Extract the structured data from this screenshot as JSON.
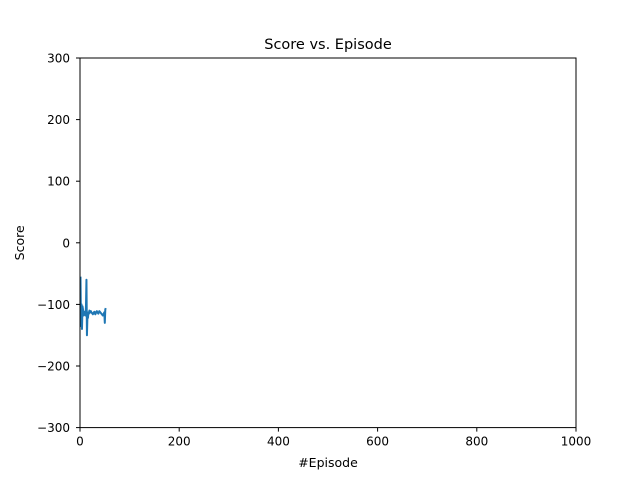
{
  "chart_data": {
    "type": "line",
    "title": "Score vs. Episode",
    "xlabel": "#Episode",
    "ylabel": "Score",
    "xlim": [
      0,
      1000
    ],
    "ylim": [
      -300,
      300
    ],
    "xticks": [
      0,
      200,
      400,
      600,
      800,
      1000
    ],
    "yticks": [
      -300,
      -200,
      -100,
      0,
      100,
      200,
      300
    ],
    "xtick_labels": [
      "0",
      "200",
      "400",
      "600",
      "800",
      "1000"
    ],
    "ytick_labels": [
      "−300",
      "−200",
      "−100",
      "0",
      "100",
      "200",
      "300"
    ],
    "grid": false,
    "series": [
      {
        "color": "#1f77b4",
        "x": [
          1,
          2,
          3,
          4,
          5,
          6,
          7,
          8,
          9,
          10,
          11,
          12,
          13,
          14,
          15,
          16,
          17,
          18,
          19,
          20,
          21,
          22,
          23,
          24,
          25,
          26,
          27,
          28,
          29,
          30,
          31,
          32,
          33,
          34,
          35,
          36,
          37,
          38,
          39,
          40,
          41,
          42,
          43,
          44,
          45,
          46,
          47,
          48,
          49,
          50,
          51,
          52
        ],
        "y": [
          -55,
          -135,
          -100,
          -140,
          -103,
          -108,
          -118,
          -112,
          -113,
          -112,
          -118,
          -105,
          -60,
          -150,
          -118,
          -122,
          -113,
          -115,
          -110,
          -112,
          -113,
          -111,
          -113,
          -114,
          -115,
          -116,
          -114,
          -113,
          -112,
          -115,
          -116,
          -114,
          -112,
          -111,
          -113,
          -114,
          -115,
          -113,
          -111,
          -112,
          -113,
          -114,
          -115,
          -116,
          -117,
          -118,
          -116,
          -115,
          -113,
          -130,
          -108,
          -106
        ]
      }
    ]
  }
}
